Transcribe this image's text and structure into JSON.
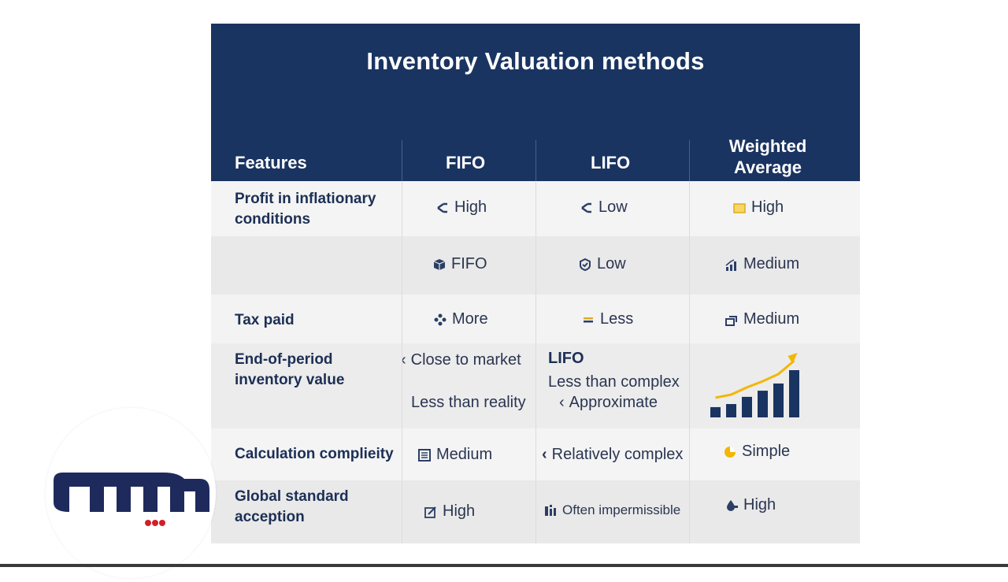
{
  "title": "Inventory Valuation methods",
  "headers": {
    "features": "Features",
    "fifo": "FIFO",
    "lifo": "LIFO",
    "weighted_line1": "Weighted",
    "weighted_line2": "Average"
  },
  "rows": [
    {
      "feature_line1": "Profit in inflationary",
      "feature_line2": "conditions",
      "fifo": "High",
      "lifo": "Low",
      "weighted": "High",
      "icons": [
        "branch-icon",
        "branch-icon",
        "folder-icon"
      ]
    },
    {
      "feature_line1": "",
      "feature_line2": "",
      "fifo": "FIFO",
      "lifo": "Low",
      "weighted": "Medium",
      "icons": [
        "box-icon",
        "shield-icon",
        "bar-signal-icon"
      ]
    },
    {
      "feature_line1": "Tax paid",
      "fifo": "More",
      "lifo": "Less",
      "weighted": "Medium",
      "icons": [
        "nodes-icon",
        "equals-icon",
        "layers-icon"
      ]
    },
    {
      "feature_line1": "End-of-period",
      "feature_line2": "inventory value",
      "fifo_line1": "Close to market",
      "fifo_line2": "Less than reality",
      "lifo_heading": "LIFO",
      "lifo_line1": "Less than complex",
      "lifo_line2": "Approximate"
    },
    {
      "feature_line1": "Calculation complieity",
      "fifo": "Medium",
      "lifo": "Relatively complex",
      "weighted": "Simple",
      "icons": [
        "list-icon",
        "chevron-left-icon",
        "pie-icon"
      ]
    },
    {
      "feature_line1": "Global standard",
      "feature_line2": "acception",
      "fifo": "High",
      "lifo": "Often impermissible",
      "weighted": "High",
      "icons": [
        "edit-icon",
        "chart-icon",
        "drop-icon"
      ]
    }
  ],
  "growth_chart": {
    "values": [
      1,
      1.3,
      2,
      2.6,
      3.3,
      4.6
    ]
  },
  "colors": {
    "header": "#1a3461",
    "accent": "#f2b705",
    "text": "#1c2f55"
  },
  "logo": {
    "wordmark": "دیباشا"
  }
}
